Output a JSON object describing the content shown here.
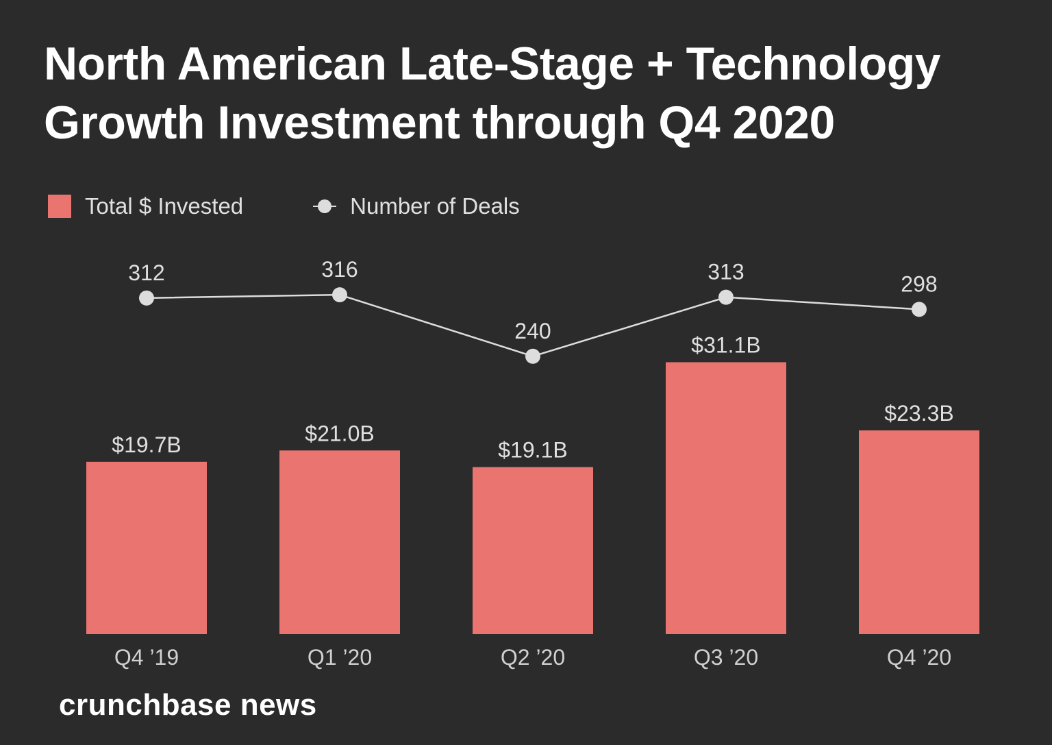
{
  "chart_data": {
    "type": "bar",
    "title": "North American Late-Stage + Technology Growth Investment through Q4 2020",
    "categories": [
      "Q4 ’19",
      "Q1 ’20",
      "Q2 ’20",
      "Q3 ’20",
      "Q4 ’20"
    ],
    "series": [
      {
        "name": "Total $ Invested",
        "type": "bar",
        "values": [
          19.7,
          21.0,
          19.1,
          31.1,
          23.3
        ],
        "labels": [
          "$19.7B",
          "$21.0B",
          "$19.1B",
          "$31.1B",
          "$23.3B"
        ],
        "unit": "$B",
        "color": "#e97470"
      },
      {
        "name": "Number of Deals",
        "type": "line",
        "values": [
          312,
          316,
          240,
          313,
          298
        ],
        "labels": [
          "312",
          "316",
          "240",
          "313",
          "298"
        ],
        "color": "#dddddd"
      }
    ],
    "ylim": [
      0,
      40
    ],
    "grid": false,
    "legend_placement": "top-left"
  },
  "title_lines": [
    "North American Late-Stage + Technology",
    "Growth Investment through Q4 2020"
  ],
  "brand": "crunchbase news",
  "colors": {
    "background": "#2b2b2b",
    "bar": "#e97470",
    "line": "#dddddd",
    "text": "#e0e0e0"
  }
}
